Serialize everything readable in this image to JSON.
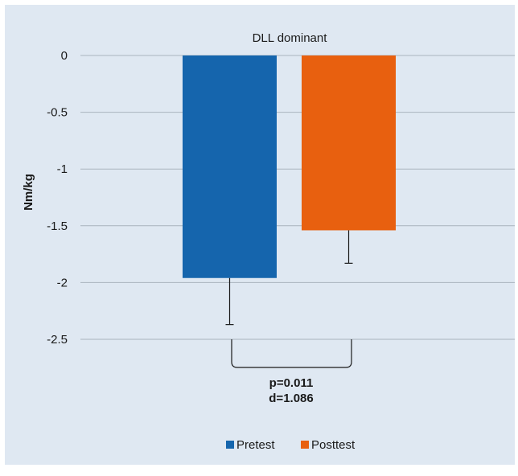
{
  "chart_data": {
    "type": "bar",
    "title": "DLL dominant",
    "ylabel": "Nm/kg",
    "xlabel": "",
    "ylim": [
      -2.5,
      0
    ],
    "yticks": [
      "0",
      "-0.5",
      "-1",
      "-1.5",
      "-2",
      "-2.5"
    ],
    "yticks_values": [
      0,
      -0.5,
      -1,
      -1.5,
      -2,
      -2.5
    ],
    "grid": true,
    "legend_position": "bottom",
    "series": [
      {
        "name": "Pretest",
        "values": [
          -1.96
        ],
        "error": [
          0.41
        ],
        "color": "#1565ad"
      },
      {
        "name": "Posttest",
        "values": [
          -1.54
        ],
        "error": [
          0.29
        ],
        "color": "#e8600f"
      }
    ],
    "annotation": {
      "p_label": "p=0.011",
      "d_label": "d=1.086"
    }
  }
}
